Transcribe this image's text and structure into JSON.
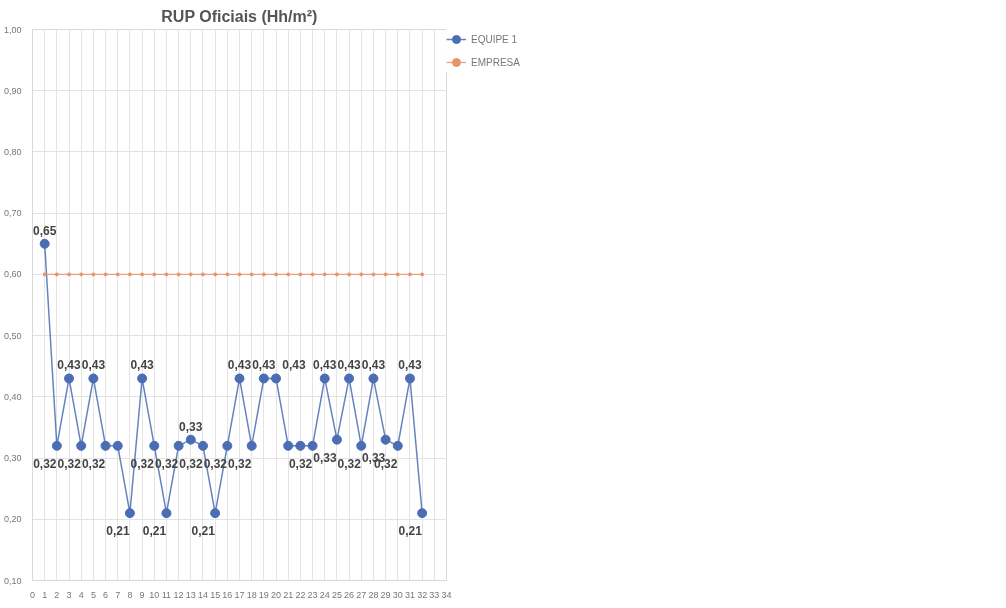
{
  "chart_data": {
    "type": "line",
    "title": "RUP Oficiais (Hh/m²)",
    "x": [
      1,
      2,
      3,
      4,
      5,
      6,
      7,
      8,
      9,
      10,
      11,
      12,
      13,
      14,
      15,
      16,
      17,
      18,
      19,
      20,
      21,
      22,
      23,
      24,
      25,
      26,
      27,
      28,
      29,
      30,
      31,
      32
    ],
    "series": [
      {
        "name": "EQUIPE 1",
        "color": "#4a6db3",
        "marker": "circle",
        "values": [
          0.65,
          0.32,
          0.43,
          0.32,
          0.43,
          0.32,
          0.32,
          0.21,
          0.43,
          0.32,
          0.21,
          0.32,
          0.33,
          0.32,
          0.21,
          0.32,
          0.43,
          0.32,
          0.43,
          0.43,
          0.32,
          0.32,
          0.32,
          0.43,
          0.33,
          0.43,
          0.32,
          0.43,
          0.33,
          0.32,
          0.43,
          0.21
        ],
        "value_labels": [
          "0,65",
          "0,32",
          "0,43",
          "0,32",
          "0,43",
          "0,32",
          null,
          "0,21",
          "0,43",
          "0,32",
          "0,21",
          "0,32",
          "0,33",
          "0,32",
          "0,21",
          "0,32",
          "0,43",
          "0,32",
          "0,43",
          "0,43",
          null,
          null,
          "0,32",
          "0,43",
          "0,33",
          "0,43",
          "0,32",
          "0,43",
          "0,33",
          "0,32",
          "0,43",
          "0,21"
        ]
      },
      {
        "name": "EMPRESA",
        "color": "#e8956a",
        "marker": "circle",
        "values": [
          0.6,
          0.6,
          0.6,
          0.6,
          0.6,
          0.6,
          0.6,
          0.6,
          0.6,
          0.6,
          0.6,
          0.6,
          0.6,
          0.6,
          0.6,
          0.6,
          0.6,
          0.6,
          0.6,
          0.6,
          0.6,
          0.6,
          0.6,
          0.6,
          0.6,
          0.6,
          0.6,
          0.6,
          0.6,
          0.6,
          0.6,
          0.6
        ]
      }
    ],
    "xlim": [
      0,
      34
    ],
    "xticks": [
      0,
      1,
      2,
      3,
      4,
      5,
      6,
      7,
      8,
      9,
      10,
      11,
      12,
      13,
      14,
      15,
      16,
      17,
      18,
      19,
      20,
      21,
      22,
      23,
      24,
      25,
      26,
      27,
      28,
      29,
      30,
      31,
      32,
      33,
      34
    ],
    "ylim": [
      0.1,
      1.0
    ],
    "yticks": [
      {
        "value": 0.1,
        "label": "0,10"
      },
      {
        "value": 0.2,
        "label": "0,20"
      },
      {
        "value": 0.3,
        "label": "0,30"
      },
      {
        "value": 0.4,
        "label": "0,40"
      },
      {
        "value": 0.5,
        "label": "0,50"
      },
      {
        "value": 0.6,
        "label": "0,60"
      },
      {
        "value": 0.7,
        "label": "0,70"
      },
      {
        "value": 0.8,
        "label": "0,80"
      },
      {
        "value": 0.9,
        "label": "0,90"
      },
      {
        "value": 1.0,
        "label": "1,00"
      }
    ],
    "grid": true,
    "legend": "right",
    "line_style": "solid"
  }
}
